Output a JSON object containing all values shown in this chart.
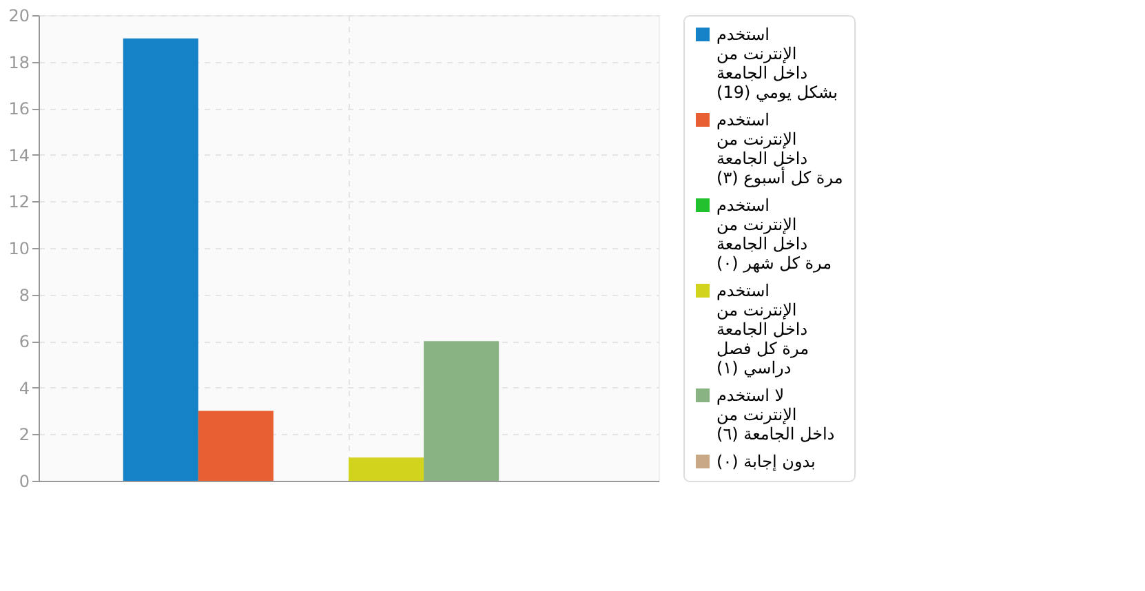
{
  "chart_data": {
    "type": "bar",
    "categories": [
      null
    ],
    "series": [
      {
        "name": "استخدم\nالإنترنت من\nداخل الجامعة\nبشكل يومي (19)",
        "color": "#1582c8",
        "values": [
          19
        ]
      },
      {
        "name": "استخدم\nالإنترنت من\nداخل الجامعة\nمرة كل أسبوع (٣)",
        "color": "#e85f33",
        "values": [
          3
        ]
      },
      {
        "name": "استخدم\nالإنترنت من\nداخل الجامعة\nمرة كل شهر (٠)",
        "color": "#22c22e",
        "values": [
          0
        ]
      },
      {
        "name": "استخدم\nالإنترنت من\nداخل الجامعة\nمرة كل فصل\nدراسي (١)",
        "color": "#d2d31c",
        "values": [
          1
        ]
      },
      {
        "name": "لا استخدم\nالإنترنت من\nداخل الجامعة (٦)",
        "color": "#89b383",
        "values": [
          6
        ]
      },
      {
        "name": "بدون إجابة (٠)",
        "color": "#c9a985",
        "values": [
          0
        ]
      }
    ],
    "ylim": [
      0,
      20
    ],
    "yticks": [
      0,
      2,
      4,
      6,
      8,
      10,
      12,
      14,
      16,
      18,
      20
    ],
    "grid": true,
    "legend": "right",
    "tick_labels": "y"
  }
}
